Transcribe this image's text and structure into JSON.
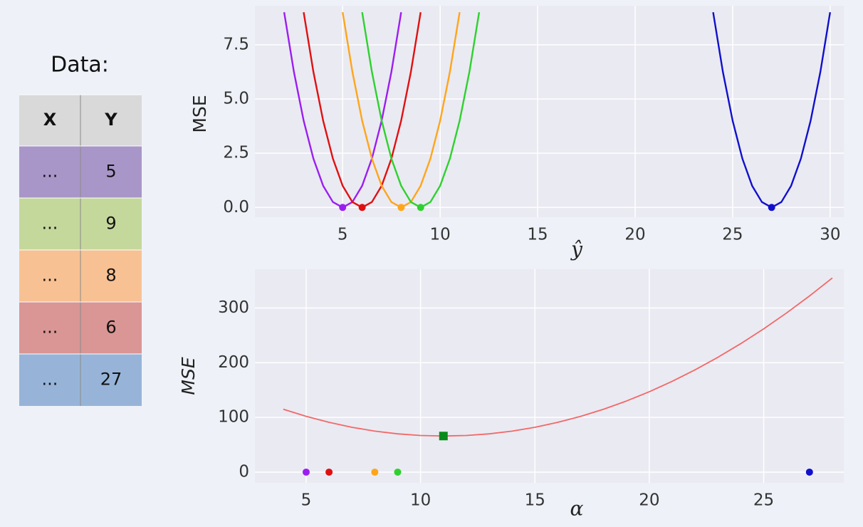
{
  "table": {
    "title": "Data:",
    "header": [
      "X",
      "Y"
    ],
    "rows": [
      [
        "...",
        "5"
      ],
      [
        "...",
        "9"
      ],
      [
        "...",
        "8"
      ],
      [
        "...",
        "6"
      ],
      [
        "...",
        "27"
      ]
    ],
    "row_colors": [
      "#a996c8",
      "#c5d89c",
      "#f8c193",
      "#d99694",
      "#97b4d8"
    ],
    "header_color": "#d9d9d9"
  },
  "chart_data": [
    {
      "type": "line",
      "xlabel": "ŷ",
      "ylabel": "MSE",
      "grid": true,
      "xlim": [
        0.5,
        30.7
      ],
      "ylim": [
        -0.45,
        9.3
      ],
      "xticks": [
        5,
        10,
        15,
        20,
        25,
        30
      ],
      "yticks": [
        {
          "value": 0,
          "label": "0.0"
        },
        2.5,
        {
          "value": 5,
          "label": "5.0"
        },
        7.5
      ],
      "series": [
        {
          "color": "#9b1ef0",
          "x": [
            2,
            2.5,
            3,
            3.5,
            4,
            4.5,
            5,
            5.5,
            6,
            6.5,
            7,
            7.5,
            8
          ],
          "values": [
            9,
            6.25,
            4,
            2.25,
            1,
            0.25,
            0,
            0.25,
            1,
            2.25,
            4,
            6.25,
            9
          ]
        },
        {
          "color": "#e01010",
          "x": [
            3,
            3.5,
            4,
            4.5,
            5,
            5.5,
            6,
            6.5,
            7,
            7.5,
            8,
            8.5,
            9
          ],
          "values": [
            9,
            6.25,
            4,
            2.25,
            1,
            0.25,
            0,
            0.25,
            1,
            2.25,
            4,
            6.25,
            9
          ]
        },
        {
          "color": "#ffa51a",
          "x": [
            5,
            5.5,
            6,
            6.5,
            7,
            7.5,
            8,
            8.5,
            9,
            9.5,
            10,
            10.5,
            11
          ],
          "values": [
            9,
            6.25,
            4,
            2.25,
            1,
            0.25,
            0,
            0.25,
            1,
            2.25,
            4,
            6.25,
            9
          ]
        },
        {
          "color": "#2ed12e",
          "x": [
            6,
            6.5,
            7,
            7.5,
            8,
            8.5,
            9,
            9.5,
            10,
            10.5,
            11,
            11.5,
            12
          ],
          "values": [
            9,
            6.25,
            4,
            2.25,
            1,
            0.25,
            0,
            0.25,
            1,
            2.25,
            4,
            6.25,
            9
          ]
        },
        {
          "color": "#1010cc",
          "x": [
            24,
            24.5,
            25,
            25.5,
            26,
            26.5,
            27,
            27.5,
            28,
            28.5,
            29,
            29.5,
            30
          ],
          "values": [
            9,
            6.25,
            4,
            2.25,
            1,
            0.25,
            0,
            0.25,
            1,
            2.25,
            4,
            6.25,
            9
          ]
        }
      ],
      "points": {
        "x": [
          5,
          6,
          8,
          9,
          27
        ],
        "values": [
          0,
          0,
          0,
          0,
          0
        ],
        "colors": [
          "#9b1ef0",
          "#e01010",
          "#ffa51a",
          "#2ed12e",
          "#1010cc"
        ]
      }
    },
    {
      "type": "line",
      "xlabel": "α",
      "ylabel": "MSE",
      "grid": true,
      "xlim": [
        2.76,
        28.5
      ],
      "ylim": [
        -19.6,
        371
      ],
      "xticks": [
        5,
        10,
        15,
        20,
        25
      ],
      "yticks": [
        0,
        100,
        200,
        300
      ],
      "series": [
        {
          "color": "#f26868",
          "x": [
            4,
            5,
            6,
            7,
            8,
            9,
            10,
            11,
            12,
            13,
            14,
            15,
            16,
            17,
            18,
            19,
            20,
            21,
            22,
            23,
            24,
            25,
            26,
            27,
            28
          ],
          "values": [
            115,
            102,
            91,
            82,
            75,
            70,
            67,
            66,
            67,
            70,
            75,
            82,
            91,
            102,
            115,
            130,
            147,
            166,
            187,
            210,
            235,
            262,
            291,
            322,
            355
          ]
        }
      ],
      "points": {
        "x": [
          5,
          6,
          8,
          9,
          27
        ],
        "values": [
          0,
          0,
          0,
          0,
          0
        ],
        "colors": [
          "#9b1ef0",
          "#e01010",
          "#ffa51a",
          "#2ed12e",
          "#1010cc"
        ]
      },
      "minimum": {
        "x": 11,
        "value": 66,
        "color": "#0a8a1a"
      }
    }
  ]
}
